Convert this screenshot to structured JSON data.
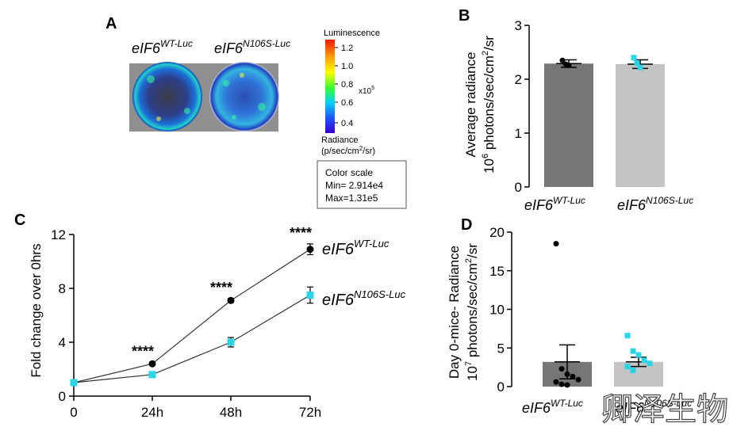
{
  "panel_a": {
    "letter": "A",
    "label_wt": {
      "base": "eIF6",
      "sup": "WT-Luc"
    },
    "label_mut": {
      "base": "eIF6",
      "sup": "N106S-Luc"
    },
    "colorbar": {
      "title": "Luminescence",
      "ticks": [
        "1.2",
        "1.0",
        "0.8",
        "0.6",
        "0.4"
      ],
      "exponent_base": "x10",
      "exponent_power": "5",
      "unit_line1": "Radiance",
      "unit_line2_a": "(p/sec/cm",
      "unit_line2_sup": "2",
      "unit_line2_b": "/sr)"
    },
    "scale_box": {
      "title": "Color scale",
      "min": "Min= 2.914e4",
      "max": "Max=1.31e5"
    }
  },
  "chart_data": [
    {
      "panel": "B",
      "type": "bar",
      "categories": [
        "eIF6 WT-Luc",
        "eIF6 N106S-Luc"
      ],
      "values": [
        2.29,
        2.28
      ],
      "errors": [
        0.07,
        0.08
      ],
      "points": [
        [
          2.35,
          2.28,
          2.26
        ],
        [
          2.4,
          2.3,
          2.22
        ]
      ],
      "colors": [
        "#767676",
        "#c4c4c4"
      ],
      "point_colors": [
        "#000000",
        "#2bd4e6"
      ],
      "ylabel_line1": "Average radiance",
      "ylabel_line2_a": "10",
      "ylabel_line2_sup1": "6",
      "ylabel_line2_b": " photons/sec/cm",
      "ylabel_line2_sup2": "2",
      "ylabel_line2_c": "/sr",
      "yticks": [
        "0",
        "1",
        "2",
        "3"
      ],
      "ylim": [
        0,
        3
      ]
    },
    {
      "panel": "C",
      "type": "line",
      "x": [
        "0",
        "24h",
        "48h",
        "72h"
      ],
      "series": [
        {
          "name": "eIF6 WT-Luc",
          "values": [
            1.0,
            2.4,
            7.1,
            10.9
          ],
          "errors": [
            0.05,
            0.1,
            0.15,
            0.4
          ],
          "color": "#000000",
          "marker": "circle"
        },
        {
          "name": "eIF6 N106S-Luc",
          "values": [
            1.0,
            1.6,
            4.0,
            7.5
          ],
          "errors": [
            0.05,
            0.1,
            0.35,
            0.6
          ],
          "color": "#2bd4e6",
          "marker": "square"
        }
      ],
      "significance": [
        "",
        "****",
        "****",
        "****"
      ],
      "ylabel": "Fold change over 0hrs",
      "yticks": [
        "0",
        "4",
        "8",
        "12"
      ],
      "ylim": [
        0,
        12
      ]
    },
    {
      "panel": "D",
      "type": "bar",
      "categories": [
        "eIF6 WT-Luc",
        "eIF6 N106S-Luc"
      ],
      "values": [
        3.2,
        3.2
      ],
      "errors": [
        2.2,
        0.6
      ],
      "points": [
        [
          18.5,
          2.3,
          1.6,
          1.3,
          0.9,
          0.6,
          0.3,
          0.2
        ],
        [
          6.6,
          4.6,
          4.1,
          3.4,
          3.0,
          2.6,
          2.1
        ]
      ],
      "colors": [
        "#767676",
        "#c4c4c4"
      ],
      "point_colors": [
        "#000000",
        "#2bd4e6"
      ],
      "ylabel_line1": "Day 0-mice- Radiance",
      "ylabel_line2_a": "10",
      "ylabel_line2_sup1": "7",
      "ylabel_line2_b": " photons/sec/cm",
      "ylabel_line2_sup2": "2",
      "ylabel_line2_c": "/sr",
      "yticks": [
        "0",
        "5",
        "10",
        "15",
        "20"
      ],
      "ylim": [
        0,
        20
      ]
    }
  ],
  "labels": {
    "wt": {
      "base": "eIF6",
      "sup": "WT-Luc"
    },
    "mut": {
      "base": "eIF6",
      "sup": "N106S-Luc"
    }
  },
  "panel_letters": {
    "b": "B",
    "c": "C",
    "d": "D"
  },
  "watermark": "卿泽生物"
}
